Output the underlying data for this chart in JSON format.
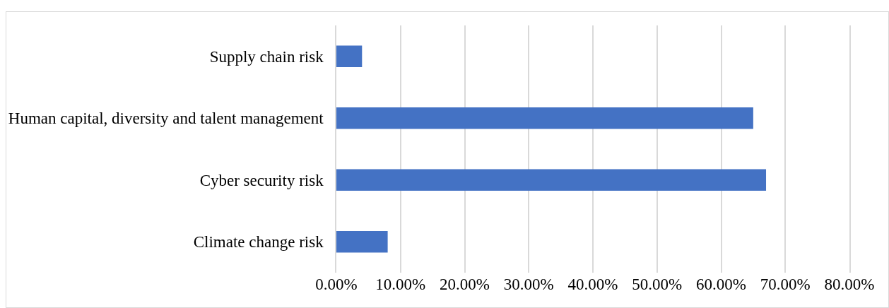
{
  "chart_data": {
    "type": "bar",
    "orientation": "horizontal",
    "categories": [
      "Supply chain risk",
      "Human capital, diversity and talent management",
      "Cyber security risk",
      "Climate change risk"
    ],
    "values": [
      4,
      65,
      67,
      8
    ],
    "color": "#4472c4",
    "xlim": [
      0,
      80
    ],
    "xticks": [
      {
        "value": 0,
        "label": "0.00%"
      },
      {
        "value": 10,
        "label": "10.00%"
      },
      {
        "value": 20,
        "label": "20.00%"
      },
      {
        "value": 30,
        "label": "30.00%"
      },
      {
        "value": 40,
        "label": "40.00%"
      },
      {
        "value": 50,
        "label": "50.00%"
      },
      {
        "value": 60,
        "label": "60.00%"
      },
      {
        "value": 70,
        "label": "70.00%"
      },
      {
        "value": 80,
        "label": "80.00%"
      }
    ],
    "grid": "x"
  }
}
